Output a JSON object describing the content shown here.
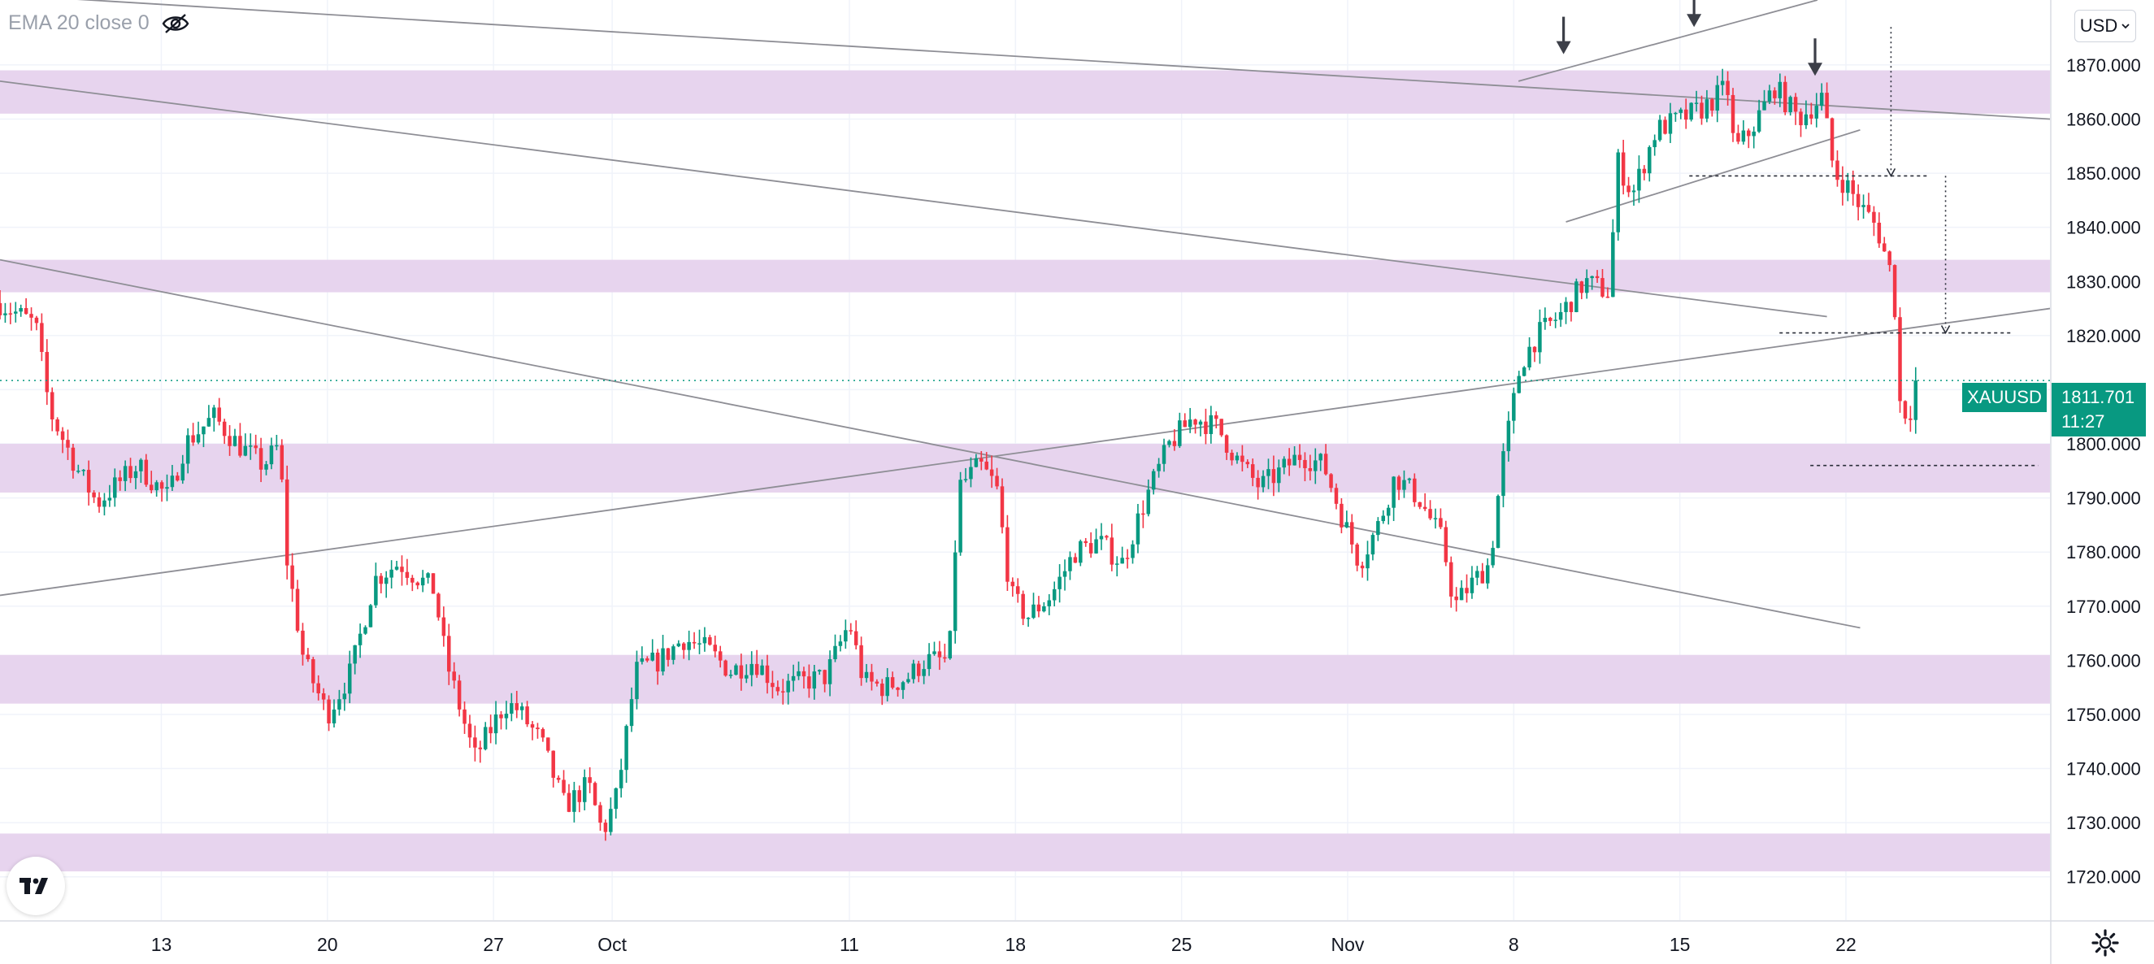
{
  "indicator": {
    "label": "EMA 20 close 0",
    "icon": "eye-off-icon"
  },
  "currency_button": {
    "label": "USD",
    "icon": "chevron-down-icon"
  },
  "symbol": {
    "name": "XAUUSD",
    "last_price": "1811.701",
    "countdown": "11:27",
    "color": "#089981"
  },
  "logo": {
    "text": "TV"
  },
  "settings": {
    "icon": "gear-icon"
  },
  "chart_data": {
    "type": "candlestick",
    "instrument": "XAUUSD",
    "timeframe_note": "2-hour candles spanning roughly Sep 8 - Nov 22",
    "ylim": [
      1712,
      1882
    ],
    "y_ticks": [
      "1720.000",
      "1730.000",
      "1740.000",
      "1750.000",
      "1760.000",
      "1770.000",
      "1780.000",
      "1790.000",
      "1800.000",
      "1810.000",
      "1820.000",
      "1830.000",
      "1840.000",
      "1850.000",
      "1860.000",
      "1870.000"
    ],
    "x_ticks": [
      {
        "label": "13",
        "day": 6
      },
      {
        "label": "20",
        "day": 13
      },
      {
        "label": "27",
        "day": 20
      },
      {
        "label": "Oct",
        "day": 25
      },
      {
        "label": "11",
        "day": 35
      },
      {
        "label": "18",
        "day": 42
      },
      {
        "label": "25",
        "day": 49
      },
      {
        "label": "Nov",
        "day": 56
      },
      {
        "label": "8",
        "day": 63
      },
      {
        "label": "15",
        "day": 70
      },
      {
        "label": "22",
        "day": 77
      }
    ],
    "day_range": [
      -0.8,
      85.6
    ],
    "grid": true,
    "up_color": "#089981",
    "down_color": "#f23645",
    "zones": [
      {
        "from": 1861,
        "to": 1869
      },
      {
        "from": 1828,
        "to": 1834
      },
      {
        "from": 1791,
        "to": 1800
      },
      {
        "from": 1752,
        "to": 1761
      },
      {
        "from": 1721,
        "to": 1728
      }
    ],
    "zone_color": "#e7d4ee",
    "trendlines": [
      {
        "from": [
          -0.8,
          1883
        ],
        "to": [
          85.6,
          1860
        ]
      },
      {
        "from": [
          -0.8,
          1867
        ],
        "to": [
          76.2,
          1823.5
        ]
      },
      {
        "from": [
          -0.8,
          1834
        ],
        "to": [
          77.6,
          1766
        ]
      },
      {
        "from": [
          -0.8,
          1772
        ],
        "to": [
          85.6,
          1825
        ]
      },
      {
        "from": [
          63.2,
          1867
        ],
        "to": [
          75.8,
          1882
        ]
      },
      {
        "from": [
          65.2,
          1841
        ],
        "to": [
          77.6,
          1858
        ]
      }
    ],
    "dashed_levels": [
      {
        "price": 1849.5,
        "from": 70.4,
        "to": 80.5
      },
      {
        "price": 1820.5,
        "from": 74.2,
        "to": 84.0
      },
      {
        "price": 1796.0,
        "from": 75.5,
        "to": 85.1
      }
    ],
    "projection_arrows": [
      {
        "day": 78.9,
        "from": 1877,
        "to": 1849.5
      },
      {
        "day": 81.2,
        "from": 1849.5,
        "to": 1820.5
      }
    ],
    "marker_arrows": [
      {
        "day": 65.1,
        "price": 1872
      },
      {
        "day": 70.6,
        "price": 1877
      },
      {
        "day": 75.7,
        "price": 1868
      }
    ],
    "last_price": 1811.7,
    "last_price_line_color": "#089981",
    "anchors": [
      [
        -0.8,
        1826
      ],
      [
        0.7,
        1822
      ],
      [
        1.3,
        1806
      ],
      [
        2.5,
        1795
      ],
      [
        3.3,
        1789
      ],
      [
        4.0,
        1792
      ],
      [
        5.0,
        1796
      ],
      [
        6.3,
        1790
      ],
      [
        7.0,
        1800
      ],
      [
        8.2,
        1805
      ],
      [
        9.2,
        1800
      ],
      [
        10.3,
        1796
      ],
      [
        11.0,
        1800
      ],
      [
        11.2,
        1781
      ],
      [
        12.0,
        1760
      ],
      [
        13.0,
        1750
      ],
      [
        14.0,
        1758
      ],
      [
        15.0,
        1775
      ],
      [
        16.0,
        1778
      ],
      [
        17.5,
        1773
      ],
      [
        18.0,
        1760
      ],
      [
        19.2,
        1742
      ],
      [
        20.5,
        1752
      ],
      [
        21.0,
        1751
      ],
      [
        22.0,
        1745
      ],
      [
        23.0,
        1733
      ],
      [
        24.0,
        1737
      ],
      [
        24.6,
        1728
      ],
      [
        25.2,
        1735
      ],
      [
        26.0,
        1758
      ],
      [
        27.0,
        1760
      ],
      [
        28.0,
        1764
      ],
      [
        29.0,
        1762
      ],
      [
        30.0,
        1758
      ],
      [
        31.0,
        1760
      ],
      [
        32.0,
        1755
      ],
      [
        34.0,
        1757
      ],
      [
        35.0,
        1767
      ],
      [
        35.6,
        1756
      ],
      [
        36.5,
        1755
      ],
      [
        37.5,
        1757
      ],
      [
        38.2,
        1760
      ],
      [
        39.2,
        1760
      ],
      [
        39.6,
        1792
      ],
      [
        40.5,
        1796
      ],
      [
        41.2,
        1792
      ],
      [
        41.8,
        1772
      ],
      [
        42.5,
        1768
      ],
      [
        43.5,
        1772
      ],
      [
        44.5,
        1780
      ],
      [
        45.5,
        1782
      ],
      [
        46.5,
        1778
      ],
      [
        47.5,
        1790
      ],
      [
        48.5,
        1800
      ],
      [
        49.5,
        1805
      ],
      [
        50.5,
        1803
      ],
      [
        51.5,
        1796
      ],
      [
        52.3,
        1792
      ],
      [
        53.2,
        1795
      ],
      [
        54.0,
        1798
      ],
      [
        55.0,
        1796
      ],
      [
        55.8,
        1786
      ],
      [
        56.5,
        1778
      ],
      [
        57.3,
        1785
      ],
      [
        58.0,
        1794
      ],
      [
        59.0,
        1790
      ],
      [
        60.0,
        1782
      ],
      [
        60.5,
        1770
      ],
      [
        61.0,
        1773
      ],
      [
        62.0,
        1778
      ],
      [
        62.5,
        1796
      ],
      [
        63.3,
        1815
      ],
      [
        64.0,
        1820
      ],
      [
        65.0,
        1824
      ],
      [
        66.0,
        1830
      ],
      [
        67.0,
        1828
      ],
      [
        67.4,
        1852
      ],
      [
        68.0,
        1846
      ],
      [
        69.0,
        1858
      ],
      [
        70.0,
        1860
      ],
      [
        71.0,
        1862
      ],
      [
        72.0,
        1866
      ],
      [
        72.3,
        1854
      ],
      [
        73.0,
        1858
      ],
      [
        74.0,
        1866
      ],
      [
        75.0,
        1860
      ],
      [
        76.0,
        1864
      ],
      [
        76.5,
        1850
      ],
      [
        77.0,
        1848
      ],
      [
        77.6,
        1844
      ],
      [
        78.3,
        1840
      ],
      [
        79.0,
        1830
      ],
      [
        79.3,
        1806
      ],
      [
        79.7,
        1806
      ],
      [
        80.0,
        1811.7
      ]
    ]
  }
}
